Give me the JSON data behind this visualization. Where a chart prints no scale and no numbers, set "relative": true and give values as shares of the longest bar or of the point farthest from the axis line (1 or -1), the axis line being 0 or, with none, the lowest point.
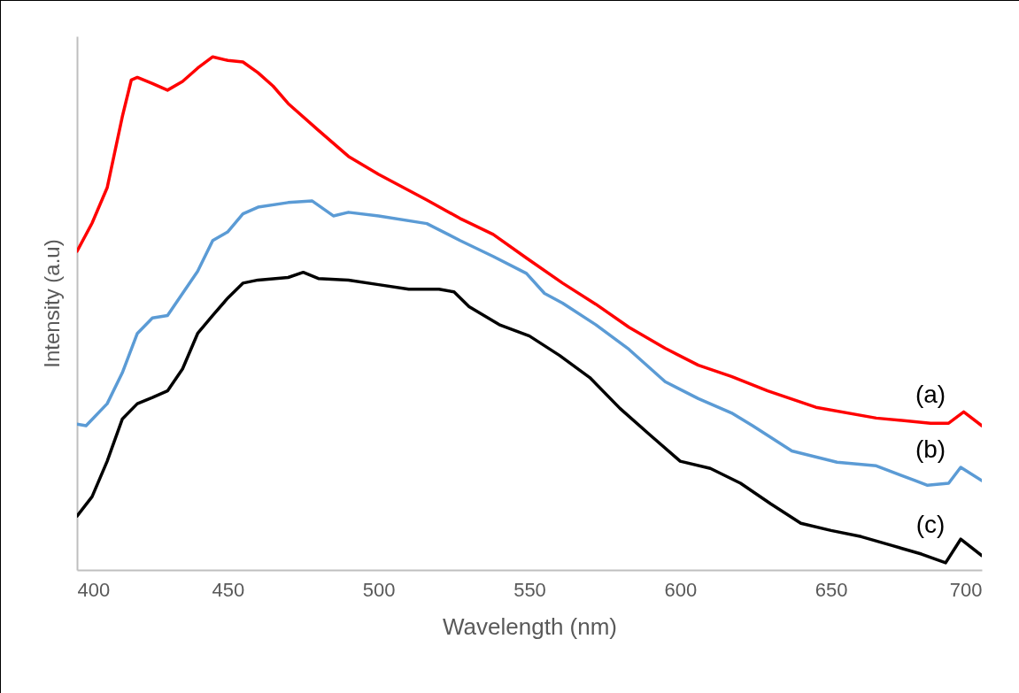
{
  "chart_data": {
    "type": "line",
    "relative": true,
    "xlabel": "Wavelength (nm)",
    "ylabel": "Intensity (a.u)",
    "xlim": [
      400,
      700
    ],
    "xticks": [
      400,
      450,
      500,
      550,
      600,
      650,
      700
    ],
    "grid": false,
    "legend": false,
    "series": [
      {
        "name": "(a)",
        "color": "#ff0000",
        "x": [
          400,
          405,
          410,
          415,
          418,
          420,
          425,
          430,
          435,
          440,
          445,
          450,
          455,
          460,
          465,
          470,
          480,
          490,
          500,
          516,
          527,
          538,
          549,
          561,
          572,
          583,
          595,
          606,
          617,
          629,
          645,
          665,
          683,
          689,
          694,
          700
        ],
        "values": [
          0.621,
          0.676,
          0.745,
          0.883,
          0.955,
          0.96,
          0.948,
          0.935,
          0.952,
          0.978,
          1.0,
          0.993,
          0.99,
          0.969,
          0.943,
          0.909,
          0.857,
          0.806,
          0.771,
          0.721,
          0.685,
          0.654,
          0.608,
          0.559,
          0.518,
          0.473,
          0.432,
          0.399,
          0.377,
          0.349,
          0.317,
          0.296,
          0.286,
          0.286,
          0.308,
          0.281
        ]
      },
      {
        "name": "(b)",
        "color": "#5b9bd5",
        "x": [
          400,
          403,
          410,
          415,
          420,
          425,
          430,
          435,
          440,
          445,
          450,
          455,
          460,
          470,
          478,
          485,
          490,
          500,
          516,
          527,
          538,
          549,
          555,
          561,
          572,
          583,
          595,
          606,
          617,
          624,
          637,
          652,
          665,
          678,
          682,
          689,
          693,
          700
        ],
        "values": [
          0.284,
          0.281,
          0.324,
          0.384,
          0.461,
          0.491,
          0.496,
          0.539,
          0.582,
          0.642,
          0.659,
          0.694,
          0.707,
          0.716,
          0.719,
          0.69,
          0.697,
          0.69,
          0.675,
          0.642,
          0.611,
          0.578,
          0.539,
          0.52,
          0.478,
          0.43,
          0.367,
          0.334,
          0.306,
          0.281,
          0.232,
          0.21,
          0.203,
          0.174,
          0.165,
          0.169,
          0.2,
          0.174
        ]
      },
      {
        "name": "(c)",
        "color": "#000000",
        "x": [
          400,
          405,
          410,
          415,
          420,
          425,
          430,
          435,
          440,
          445,
          450,
          455,
          460,
          470,
          475,
          480,
          490,
          500,
          510,
          520,
          525,
          530,
          540,
          550,
          560,
          570,
          580,
          590,
          600,
          610,
          620,
          630,
          640,
          650,
          660,
          670,
          680,
          688,
          693,
          700
        ],
        "values": [
          0.105,
          0.143,
          0.212,
          0.294,
          0.324,
          0.336,
          0.349,
          0.392,
          0.461,
          0.496,
          0.53,
          0.559,
          0.565,
          0.57,
          0.58,
          0.568,
          0.565,
          0.556,
          0.547,
          0.547,
          0.542,
          0.513,
          0.478,
          0.456,
          0.418,
          0.375,
          0.315,
          0.263,
          0.212,
          0.198,
          0.169,
          0.129,
          0.091,
          0.077,
          0.065,
          0.048,
          0.031,
          0.014,
          0.06,
          0.028
        ]
      }
    ]
  }
}
